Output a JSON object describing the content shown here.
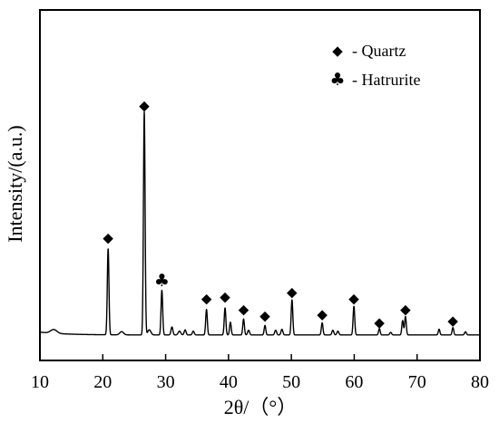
{
  "chart_data": {
    "type": "line",
    "title": "",
    "xlabel": "2θ/（°）",
    "ylabel": "Intensity/(a.u.)",
    "xlim": [
      10,
      80
    ],
    "ylim": [
      0,
      110
    ],
    "xticks": [
      10,
      20,
      30,
      40,
      50,
      60,
      70,
      80
    ],
    "y_ticks_labeled": false,
    "grid": false,
    "legend": {
      "placement": "top-right",
      "entries": [
        {
          "symbol": "diamond",
          "glyph": "◆",
          "label": "- Quartz"
        },
        {
          "symbol": "club",
          "glyph": "♣",
          "label": "- Hatrurite"
        }
      ]
    },
    "series": [
      {
        "baseline": 8,
        "peaks": [
          {
            "x": 12.2,
            "height": 1.2,
            "width": 0.5
          },
          {
            "x": 20.85,
            "height": 27,
            "width": 0.13
          },
          {
            "x": 23.0,
            "height": 1.0,
            "width": 0.3
          },
          {
            "x": 26.6,
            "height": 70,
            "width": 0.13
          },
          {
            "x": 27.4,
            "height": 1.6,
            "width": 0.25
          },
          {
            "x": 29.4,
            "height": 14,
            "width": 0.13
          },
          {
            "x": 31.0,
            "height": 2.5,
            "width": 0.15
          },
          {
            "x": 32.2,
            "height": 1.2,
            "width": 0.2
          },
          {
            "x": 33.1,
            "height": 1.6,
            "width": 0.15
          },
          {
            "x": 34.4,
            "height": 1.2,
            "width": 0.15
          },
          {
            "x": 36.5,
            "height": 8,
            "width": 0.13
          },
          {
            "x": 39.45,
            "height": 8.5,
            "width": 0.13
          },
          {
            "x": 40.3,
            "height": 4,
            "width": 0.13
          },
          {
            "x": 42.4,
            "height": 5,
            "width": 0.13
          },
          {
            "x": 43.2,
            "height": 1.5,
            "width": 0.15
          },
          {
            "x": 45.8,
            "height": 3,
            "width": 0.13
          },
          {
            "x": 47.5,
            "height": 1.5,
            "width": 0.15
          },
          {
            "x": 48.5,
            "height": 1.8,
            "width": 0.15
          },
          {
            "x": 50.1,
            "height": 11,
            "width": 0.13
          },
          {
            "x": 54.9,
            "height": 3.8,
            "width": 0.13
          },
          {
            "x": 56.6,
            "height": 1.5,
            "width": 0.15
          },
          {
            "x": 57.4,
            "height": 1.2,
            "width": 0.15
          },
          {
            "x": 59.95,
            "height": 9,
            "width": 0.13
          },
          {
            "x": 64.0,
            "height": 2.0,
            "width": 0.13
          },
          {
            "x": 65.8,
            "height": 0.8,
            "width": 0.15
          },
          {
            "x": 67.7,
            "height": 4.5,
            "width": 0.13
          },
          {
            "x": 68.15,
            "height": 5.8,
            "width": 0.13
          },
          {
            "x": 73.5,
            "height": 1.8,
            "width": 0.13
          },
          {
            "x": 75.7,
            "height": 2.3,
            "width": 0.13
          },
          {
            "x": 77.7,
            "height": 1.0,
            "width": 0.15
          }
        ]
      }
    ],
    "annotations": [
      {
        "x": 20.85,
        "y": 38.5,
        "symbol": "diamond",
        "glyph": "◆"
      },
      {
        "x": 26.6,
        "y": 80,
        "symbol": "diamond",
        "glyph": "◆"
      },
      {
        "x": 29.4,
        "y": 25,
        "symbol": "club",
        "glyph": "♣"
      },
      {
        "x": 36.5,
        "y": 19.5,
        "symbol": "diamond",
        "glyph": "◆"
      },
      {
        "x": 39.45,
        "y": 20,
        "symbol": "diamond",
        "glyph": "◆"
      },
      {
        "x": 42.4,
        "y": 16,
        "symbol": "diamond",
        "glyph": "◆"
      },
      {
        "x": 45.8,
        "y": 14,
        "symbol": "diamond",
        "glyph": "◆"
      },
      {
        "x": 50.1,
        "y": 21.5,
        "symbol": "diamond",
        "glyph": "◆"
      },
      {
        "x": 54.9,
        "y": 14.5,
        "symbol": "diamond",
        "glyph": "◆"
      },
      {
        "x": 59.95,
        "y": 19.5,
        "symbol": "diamond",
        "glyph": "◆"
      },
      {
        "x": 64.0,
        "y": 12,
        "symbol": "diamond",
        "glyph": "◆"
      },
      {
        "x": 68.15,
        "y": 16,
        "symbol": "diamond",
        "glyph": "◆"
      },
      {
        "x": 75.7,
        "y": 12.5,
        "symbol": "diamond",
        "glyph": "◆"
      }
    ],
    "colors": {
      "line": "#000000",
      "axes": "#000000",
      "background": "#ffffff"
    }
  }
}
